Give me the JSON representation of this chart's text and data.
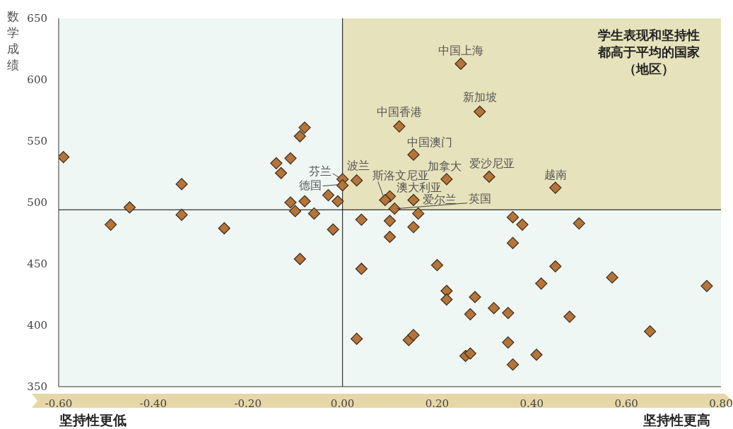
{
  "chart_data": {
    "type": "scatter",
    "ylabel": "数学成绩",
    "x": [
      -0.59,
      -0.49,
      -0.45,
      -0.34,
      -0.34,
      -0.25,
      -0.14,
      -0.13,
      -0.11,
      -0.09,
      -0.08,
      -0.11,
      -0.1,
      -0.08,
      -0.06,
      -0.09,
      -0.03,
      -0.02,
      -0.01,
      0.0,
      0.0,
      0.03,
      0.04,
      0.04,
      0.25,
      0.29,
      0.12,
      0.15,
      0.22,
      0.31,
      0.45,
      0.1,
      0.09,
      0.15,
      0.11,
      0.16,
      0.1,
      0.15,
      0.36,
      0.38,
      0.5,
      0.1,
      0.36,
      0.2,
      0.45,
      0.57,
      0.42,
      0.77,
      0.22,
      0.22,
      0.28,
      0.27,
      0.32,
      0.35,
      0.48,
      0.65,
      0.03,
      0.14,
      0.15,
      0.35,
      0.26,
      0.27,
      0.41,
      0.36
    ],
    "values": [
      537,
      482,
      496,
      515,
      490,
      479,
      532,
      524,
      536,
      554,
      561,
      500,
      493,
      501,
      491,
      454,
      506,
      478,
      501,
      519,
      514,
      518,
      486,
      446,
      613,
      574,
      562,
      539,
      519,
      521,
      512,
      505,
      502,
      502,
      495,
      491,
      485,
      480,
      488,
      482,
      483,
      472,
      467,
      449,
      448,
      439,
      434,
      432,
      428,
      421,
      423,
      409,
      414,
      410,
      407,
      395,
      389,
      388,
      392,
      386,
      375,
      377,
      376,
      368
    ],
    "value_labels": [
      null,
      null,
      null,
      null,
      null,
      null,
      null,
      null,
      null,
      null,
      null,
      null,
      null,
      null,
      null,
      null,
      null,
      null,
      null,
      "芬兰",
      "德国",
      "波兰",
      null,
      null,
      "中国上海",
      "新加坡",
      "中国香港",
      "中国澳门",
      "加拿大",
      "爱沙尼亚",
      "越南",
      "澳大利亚",
      "斯洛文尼亚",
      "爱尔兰",
      "英国",
      null,
      null,
      null,
      null,
      null,
      null,
      null,
      null,
      null,
      null,
      null,
      null,
      null,
      null,
      null,
      null,
      null,
      null,
      null,
      null,
      null,
      null,
      null,
      null,
      null,
      null,
      null,
      null,
      null
    ],
    "color": "#b5743a",
    "marker": "diamond",
    "xlim": [
      -0.6,
      0.8
    ],
    "xticks": [
      {
        "value": -0.6,
        "label": "-0.60"
      },
      {
        "value": -0.4,
        "label": "-0.40"
      },
      {
        "value": -0.2,
        "label": "-0.20"
      },
      {
        "value": 0,
        "label": "0.00"
      },
      {
        "value": 0.2,
        "label": "0.20"
      },
      {
        "value": 0.4,
        "label": "0.40"
      },
      {
        "value": 0.6,
        "label": "0.60"
      },
      {
        "value": 0.8,
        "label": "0.80"
      }
    ],
    "ylim": [
      350,
      650
    ],
    "yticks": [
      350,
      400,
      450,
      500,
      550,
      600,
      650
    ],
    "ref_lines": [
      {
        "axis": "y",
        "value": 494
      },
      {
        "axis": "x",
        "value": 0
      }
    ],
    "bands": [
      {
        "axis": "x",
        "from": 0,
        "to": 0.8,
        "label": "学生表现和坚持性都高于平均的国家（地区）",
        "color": "#e6e2bb"
      }
    ],
    "annotations": [
      "坚持性更低",
      "坚持性更高"
    ]
  }
}
